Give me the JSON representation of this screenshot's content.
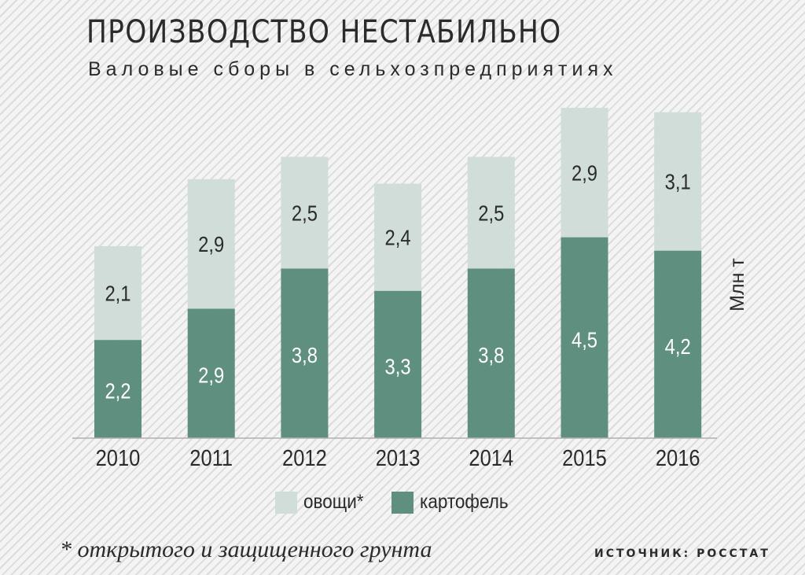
{
  "chart_data": {
    "type": "bar",
    "stacked": true,
    "title": "ПРОИЗВОДСТВО НЕСТАБИЛЬНО",
    "subtitle": "Валовые сборы в сельхозпредприятиях",
    "ylabel": "Млн т",
    "categories": [
      "2010",
      "2011",
      "2012",
      "2013",
      "2014",
      "2015",
      "2016"
    ],
    "series": [
      {
        "name": "картофель",
        "values": [
          2.2,
          2.9,
          3.8,
          3.3,
          3.8,
          4.5,
          4.2
        ],
        "labels": [
          "2,2",
          "2,9",
          "3,8",
          "3,3",
          "3,8",
          "4,5",
          "4,2"
        ]
      },
      {
        "name": "овощи*",
        "values": [
          2.1,
          2.9,
          2.5,
          2.4,
          2.5,
          2.9,
          3.1
        ],
        "labels": [
          "2,1",
          "2,9",
          "2,5",
          "2,4",
          "2,5",
          "2,9",
          "3,1"
        ]
      }
    ],
    "ylim": [
      0,
      7.4
    ],
    "legend_position": "bottom-center",
    "grid": false
  },
  "colors": {
    "potato": "#5e8f7f",
    "vegetables": "#d0ddd8",
    "text": "#2b2b2b",
    "label_light": "#ffffff"
  },
  "legend": {
    "vegetables_label": "овощи*",
    "potato_label": "картофель"
  },
  "footnote": "* открытого и защищенного грунта",
  "source": "ИСТОЧНИК: РОССТАТ"
}
